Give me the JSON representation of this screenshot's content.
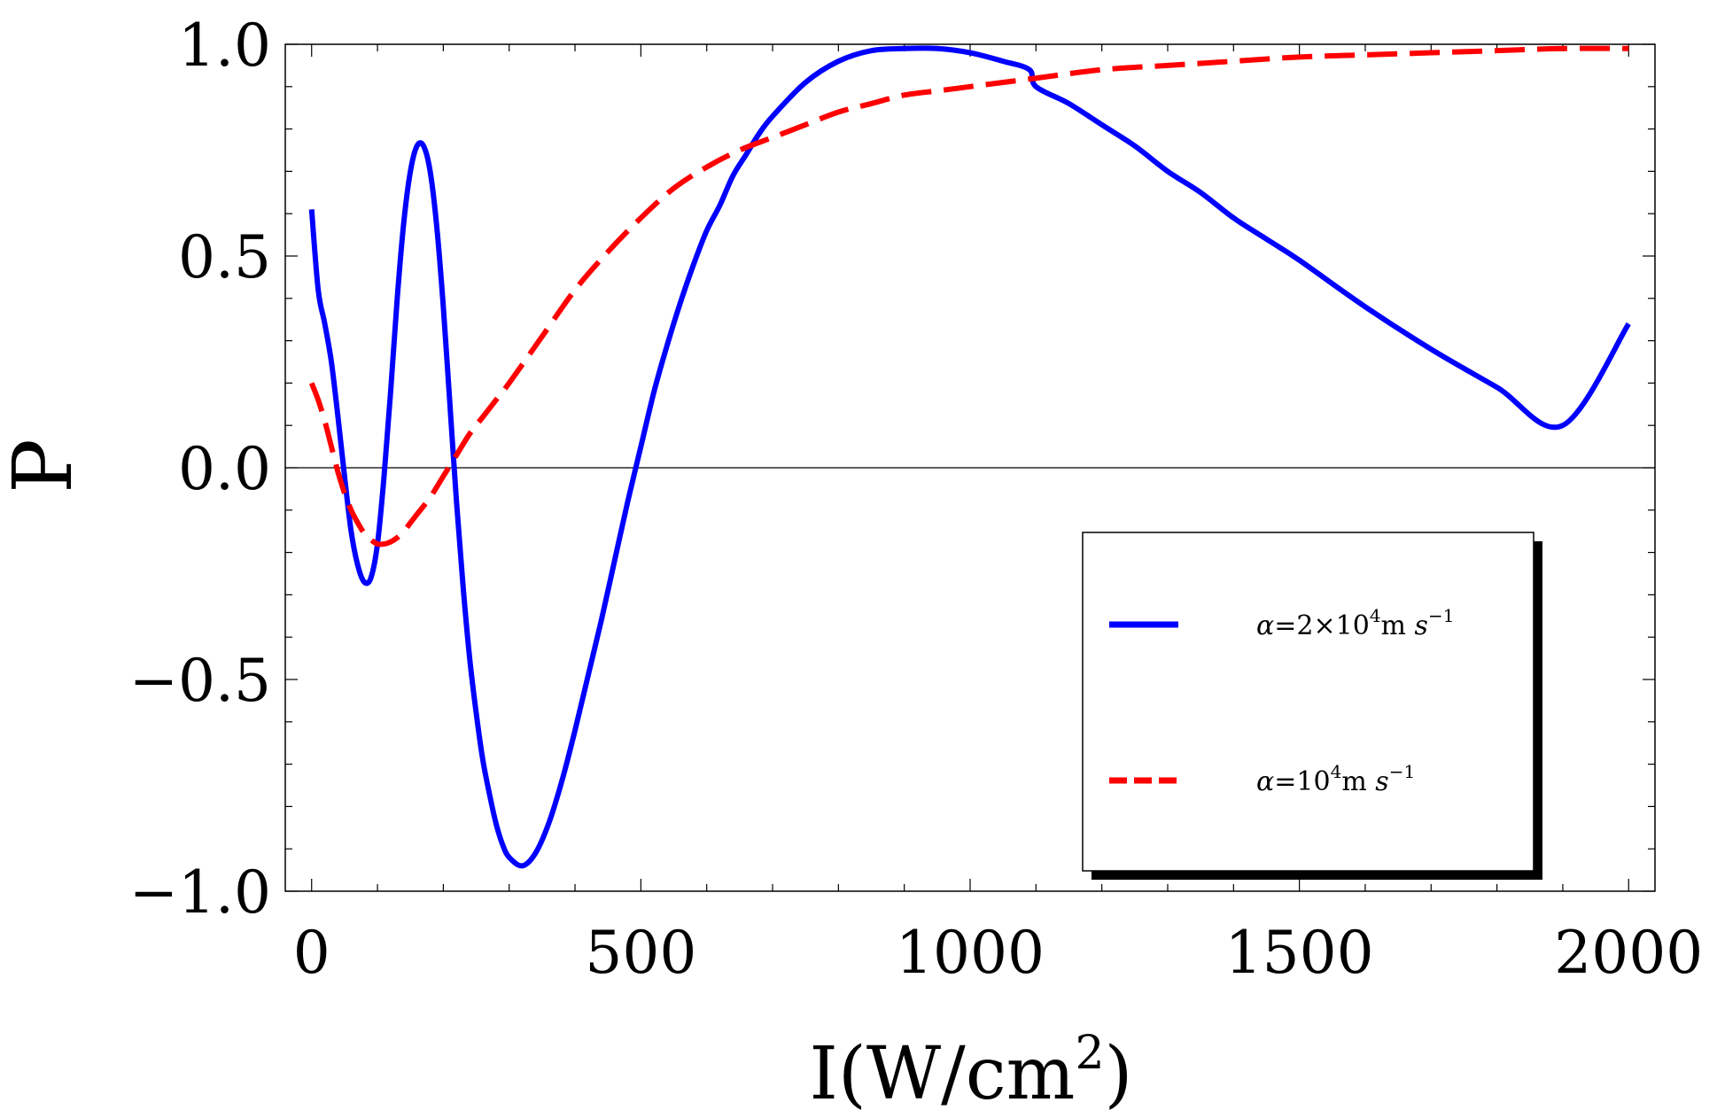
{
  "chart_data": {
    "type": "line",
    "title": "",
    "xlabel": "I(W/cm",
    "xlabel_sup": "2",
    "xlabel_close": ")",
    "ylabel": "P",
    "xlim": [
      -40,
      2040
    ],
    "ylim": [
      -1.0,
      1.0
    ],
    "grid": false,
    "x_ticks": [
      0,
      500,
      1000,
      1500,
      2000
    ],
    "x_tick_labels": [
      "0",
      "500",
      "1000",
      "1500",
      "2000"
    ],
    "y_ticks": [
      -1.0,
      -0.5,
      0.0,
      0.5,
      1.0
    ],
    "y_tick_labels": [
      "−1.0",
      "−0.5",
      "0.0",
      "0.5",
      "1.0"
    ],
    "legend_position": "bottom-right",
    "series": [
      {
        "name": "alpha=2x10^4 m s^-1",
        "color": "#0000ff",
        "style": "solid",
        "legend": {
          "greek": "α",
          "eq": "=2×10",
          "exp": "4",
          "unit": "m ",
          "s": "s",
          "sexp": "−1"
        },
        "x": [
          0,
          10,
          20,
          30,
          40,
          50,
          60,
          70,
          80,
          90,
          100,
          110,
          120,
          130,
          140,
          150,
          160,
          170,
          180,
          190,
          200,
          210,
          220,
          230,
          240,
          250,
          260,
          270,
          280,
          290,
          300,
          320,
          340,
          360,
          380,
          400,
          420,
          440,
          460,
          480,
          500,
          520,
          540,
          560,
          580,
          600,
          620,
          640,
          660,
          680,
          700,
          750,
          800,
          850,
          900,
          950,
          1000,
          1050,
          1090,
          1100,
          1150,
          1200,
          1250,
          1300,
          1350,
          1400,
          1450,
          1500,
          1600,
          1700,
          1800,
          1900,
          2000
        ],
        "y": [
          0.61,
          0.42,
          0.34,
          0.25,
          0.12,
          -0.02,
          -0.15,
          -0.23,
          -0.27,
          -0.26,
          -0.18,
          -0.02,
          0.18,
          0.4,
          0.58,
          0.7,
          0.76,
          0.76,
          0.7,
          0.57,
          0.38,
          0.15,
          -0.08,
          -0.28,
          -0.45,
          -0.58,
          -0.69,
          -0.77,
          -0.84,
          -0.89,
          -0.92,
          -0.94,
          -0.91,
          -0.84,
          -0.74,
          -0.62,
          -0.49,
          -0.36,
          -0.22,
          -0.08,
          0.05,
          0.18,
          0.29,
          0.39,
          0.48,
          0.56,
          0.62,
          0.69,
          0.74,
          0.79,
          0.83,
          0.91,
          0.96,
          0.985,
          0.99,
          0.99,
          0.98,
          0.96,
          0.94,
          0.9,
          0.86,
          0.81,
          0.76,
          0.7,
          0.65,
          0.59,
          0.54,
          0.49,
          0.38,
          0.28,
          0.19,
          0.1,
          0.34
        ]
      },
      {
        "name": "alpha=10^4 m s^-1",
        "color": "#ff0000",
        "style": "dashed",
        "legend": {
          "greek": "α",
          "eq": "=10",
          "exp": "4",
          "unit": "m ",
          "s": "s",
          "sexp": "−1"
        },
        "x": [
          0,
          10,
          20,
          30,
          40,
          50,
          60,
          70,
          80,
          90,
          100,
          110,
          120,
          130,
          140,
          150,
          160,
          180,
          200,
          220,
          240,
          260,
          280,
          300,
          350,
          400,
          450,
          500,
          550,
          600,
          650,
          700,
          750,
          800,
          850,
          900,
          950,
          1000,
          1100,
          1200,
          1300,
          1400,
          1500,
          1600,
          1700,
          1800,
          1900,
          2000
        ],
        "y": [
          0.2,
          0.16,
          0.11,
          0.05,
          -0.01,
          -0.06,
          -0.1,
          -0.13,
          -0.155,
          -0.17,
          -0.18,
          -0.18,
          -0.175,
          -0.165,
          -0.15,
          -0.13,
          -0.11,
          -0.07,
          -0.02,
          0.03,
          0.08,
          0.12,
          0.16,
          0.2,
          0.31,
          0.42,
          0.51,
          0.59,
          0.66,
          0.71,
          0.75,
          0.78,
          0.81,
          0.84,
          0.86,
          0.88,
          0.89,
          0.9,
          0.92,
          0.94,
          0.95,
          0.96,
          0.97,
          0.975,
          0.98,
          0.985,
          0.99,
          0.99
        ]
      }
    ]
  }
}
